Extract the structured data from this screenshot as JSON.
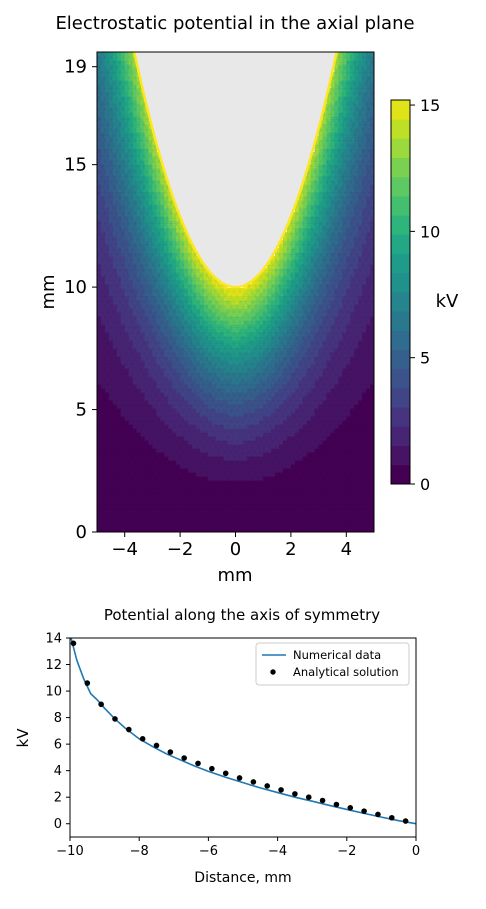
{
  "chart_data": [
    {
      "type": "heatmap",
      "title": "Electrostatic potential in the axial plane",
      "xlabel": "mm",
      "ylabel": "mm",
      "xlim": [
        -5,
        5
      ],
      "ylim": [
        0,
        19.6
      ],
      "xticks": [
        "−4",
        "−2",
        "0",
        "2",
        "4"
      ],
      "xtick_values": [
        -4,
        -2,
        0,
        2,
        4
      ],
      "yticks": [
        "0",
        "5",
        "10",
        "15",
        "19"
      ],
      "ytick_values": [
        0,
        5,
        10,
        15,
        19
      ],
      "colormap": "viridis",
      "levels": 20,
      "electrode": {
        "tip_y": 10,
        "shape": "parabolic",
        "fill": "#e8e8e8"
      },
      "colorbar": {
        "label": "kV",
        "range": [
          0,
          15.2
        ],
        "ticks": [
          "0",
          "5",
          "10",
          "15"
        ],
        "tick_values": [
          0,
          5,
          10,
          15
        ]
      }
    },
    {
      "type": "line",
      "title": "Potential along the axis of symmetry",
      "xlabel": "Distance, mm",
      "ylabel": "kV",
      "xlim": [
        -10,
        0
      ],
      "ylim": [
        -1,
        14
      ],
      "xticks": [
        "−10",
        "−8",
        "−6",
        "−4",
        "−2",
        "0"
      ],
      "xtick_values": [
        -10,
        -8,
        -6,
        -4,
        -2,
        0
      ],
      "yticks": [
        "0",
        "2",
        "4",
        "6",
        "8",
        "10",
        "12",
        "14"
      ],
      "ytick_values": [
        0,
        2,
        4,
        6,
        8,
        10,
        12,
        14
      ],
      "legend": "top-right",
      "series": [
        {
          "name": "Numerical data",
          "style": "line",
          "color": "#1f77b4",
          "x": [
            -10,
            -9.9,
            -9.8,
            -9.6,
            -9.4,
            -9.2,
            -9.0,
            -8.7,
            -8.4,
            -8.0,
            -7.6,
            -7.2,
            -6.8,
            -6.4,
            -6.0,
            -5.5,
            -5.0,
            -4.5,
            -4.0,
            -3.5,
            -3.0,
            -2.5,
            -2.0,
            -1.5,
            -1.0,
            -0.5,
            0
          ],
          "values": [
            14.3,
            13.3,
            12.3,
            10.9,
            9.8,
            9.3,
            8.7,
            7.9,
            7.2,
            6.4,
            5.8,
            5.25,
            4.8,
            4.35,
            3.95,
            3.5,
            3.1,
            2.7,
            2.35,
            2.0,
            1.7,
            1.38,
            1.08,
            0.78,
            0.5,
            0.23,
            0.0
          ]
        },
        {
          "name": "Analytical solution",
          "style": "scatter",
          "color": "#000000",
          "x": [
            -9.9,
            -9.5,
            -9.1,
            -8.7,
            -8.3,
            -7.9,
            -7.5,
            -7.1,
            -6.7,
            -6.3,
            -5.9,
            -5.5,
            -5.1,
            -4.7,
            -4.3,
            -3.9,
            -3.5,
            -3.1,
            -2.7,
            -2.3,
            -1.9,
            -1.5,
            -1.1,
            -0.7,
            -0.3
          ],
          "values": [
            13.6,
            10.6,
            9.0,
            7.9,
            7.1,
            6.4,
            5.9,
            5.4,
            4.95,
            4.55,
            4.15,
            3.8,
            3.45,
            3.15,
            2.85,
            2.55,
            2.25,
            2.0,
            1.75,
            1.45,
            1.2,
            0.95,
            0.7,
            0.45,
            0.2
          ]
        }
      ]
    }
  ]
}
